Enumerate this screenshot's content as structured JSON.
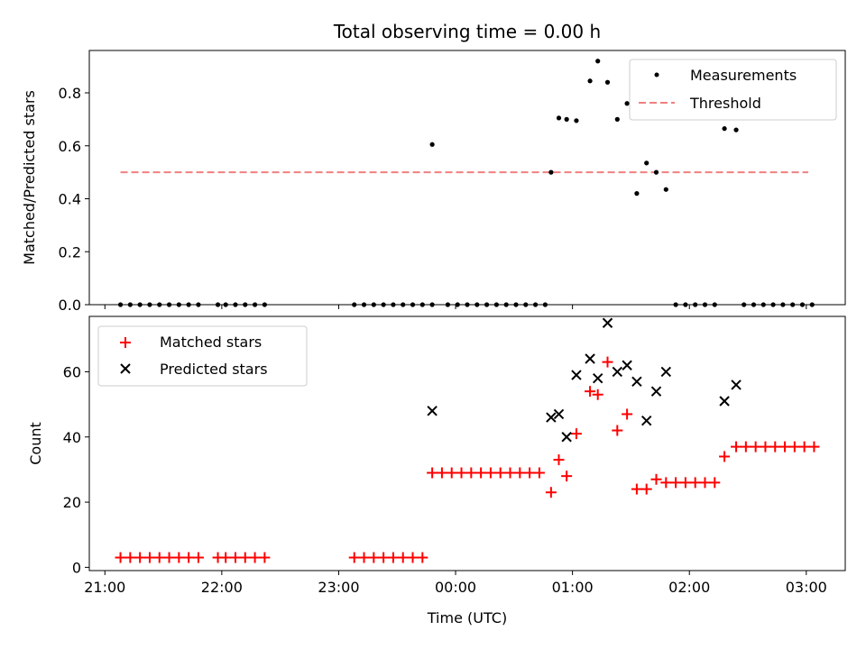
{
  "chart_data": [
    {
      "type": "scatter",
      "title": "Total observing time = 0.00 h",
      "xlabel": "",
      "ylabel": "Matched/Predicted stars",
      "xlim": [
        "20:52",
        "03:20"
      ],
      "ylim": [
        0,
        0.96
      ],
      "yticks": [
        "0.0",
        "0.2",
        "0.4",
        "0.6",
        "0.8"
      ],
      "xticks": [
        "21:00",
        "22:00",
        "23:00",
        "00:00",
        "01:00",
        "02:00",
        "03:00"
      ],
      "legend_position": "upper right",
      "legend": {
        "measurements_label": "Measurements",
        "threshold_label": "Threshold"
      },
      "threshold": {
        "value": 0.5,
        "x_start": "21:08",
        "x_end": "03:01",
        "color": "#f08080",
        "style": "dashed"
      },
      "series": [
        {
          "label": "Measurements",
          "color": "#000000",
          "marker": "dot",
          "points": [
            [
              "21:08",
              0
            ],
            [
              "21:13",
              0
            ],
            [
              "21:18",
              0
            ],
            [
              "21:23",
              0
            ],
            [
              "21:28",
              0
            ],
            [
              "21:33",
              0
            ],
            [
              "21:38",
              0
            ],
            [
              "21:43",
              0
            ],
            [
              "21:48",
              0
            ],
            [
              "21:58",
              0
            ],
            [
              "22:02",
              0
            ],
            [
              "22:07",
              0
            ],
            [
              "22:12",
              0
            ],
            [
              "22:17",
              0
            ],
            [
              "22:22",
              0
            ],
            [
              "23:08",
              0
            ],
            [
              "23:13",
              0
            ],
            [
              "23:18",
              0
            ],
            [
              "23:23",
              0
            ],
            [
              "23:28",
              0
            ],
            [
              "23:33",
              0
            ],
            [
              "23:38",
              0
            ],
            [
              "23:43",
              0
            ],
            [
              "23:48",
              0
            ],
            [
              "23:48",
              0.605
            ],
            [
              "23:56",
              0
            ],
            [
              "24:01",
              0
            ],
            [
              "24:06",
              0
            ],
            [
              "24:11",
              0
            ],
            [
              "24:16",
              0
            ],
            [
              "24:21",
              0
            ],
            [
              "24:26",
              0
            ],
            [
              "24:31",
              0
            ],
            [
              "24:36",
              0
            ],
            [
              "24:41",
              0
            ],
            [
              "24:46",
              0
            ],
            [
              "24:49",
              0.5
            ],
            [
              "24:53",
              0.705
            ],
            [
              "24:57",
              0.7
            ],
            [
              "25:02",
              0.695
            ],
            [
              "25:09",
              0.845
            ],
            [
              "25:13",
              0.92
            ],
            [
              "25:18",
              0.84
            ],
            [
              "25:23",
              0.7
            ],
            [
              "25:28",
              0.76
            ],
            [
              "25:33",
              0.42
            ],
            [
              "25:38",
              0.535
            ],
            [
              "25:43",
              0.5
            ],
            [
              "25:48",
              0.435
            ],
            [
              "25:53",
              0
            ],
            [
              "25:58",
              0
            ],
            [
              "26:03",
              0
            ],
            [
              "26:08",
              0
            ],
            [
              "26:13",
              0
            ],
            [
              "26:18",
              0.665
            ],
            [
              "26:24",
              0.66
            ],
            [
              "26:28",
              0
            ],
            [
              "26:33",
              0
            ],
            [
              "26:38",
              0
            ],
            [
              "26:43",
              0
            ],
            [
              "26:48",
              0
            ],
            [
              "26:53",
              0
            ],
            [
              "26:58",
              0
            ],
            [
              "27:03",
              0
            ]
          ]
        }
      ]
    },
    {
      "type": "scatter",
      "title": "",
      "xlabel": "Time (UTC)",
      "ylabel": "Count",
      "xlim": [
        "20:52",
        "03:20"
      ],
      "ylim": [
        -1,
        77
      ],
      "yticks": [
        "0",
        "20",
        "40",
        "60"
      ],
      "xticks": [
        "21:00",
        "22:00",
        "23:00",
        "00:00",
        "01:00",
        "02:00",
        "03:00"
      ],
      "legend_position": "upper left",
      "legend": {
        "matched_label": "Matched stars",
        "predicted_label": "Predicted stars"
      },
      "series": [
        {
          "label": "Matched stars",
          "color": "#ff0000",
          "marker": "plus",
          "points": [
            [
              "21:08",
              3
            ],
            [
              "21:13",
              3
            ],
            [
              "21:18",
              3
            ],
            [
              "21:23",
              3
            ],
            [
              "21:28",
              3
            ],
            [
              "21:33",
              3
            ],
            [
              "21:38",
              3
            ],
            [
              "21:43",
              3
            ],
            [
              "21:48",
              3
            ],
            [
              "21:58",
              3
            ],
            [
              "22:02",
              3
            ],
            [
              "22:07",
              3
            ],
            [
              "22:12",
              3
            ],
            [
              "22:17",
              3
            ],
            [
              "22:22",
              3
            ],
            [
              "23:08",
              3
            ],
            [
              "23:13",
              3
            ],
            [
              "23:18",
              3
            ],
            [
              "23:23",
              3
            ],
            [
              "23:28",
              3
            ],
            [
              "23:33",
              3
            ],
            [
              "23:38",
              3
            ],
            [
              "23:43",
              3
            ],
            [
              "23:48",
              29
            ],
            [
              "23:53",
              29
            ],
            [
              "23:58",
              29
            ],
            [
              "24:03",
              29
            ],
            [
              "24:08",
              29
            ],
            [
              "24:13",
              29
            ],
            [
              "24:18",
              29
            ],
            [
              "24:23",
              29
            ],
            [
              "24:28",
              29
            ],
            [
              "24:33",
              29
            ],
            [
              "24:38",
              29
            ],
            [
              "24:43",
              29
            ],
            [
              "24:49",
              23
            ],
            [
              "24:53",
              33
            ],
            [
              "24:57",
              28
            ],
            [
              "25:02",
              41
            ],
            [
              "25:09",
              54
            ],
            [
              "25:13",
              53
            ],
            [
              "25:18",
              63
            ],
            [
              "25:23",
              42
            ],
            [
              "25:28",
              47
            ],
            [
              "25:33",
              24
            ],
            [
              "25:38",
              24
            ],
            [
              "25:43",
              27
            ],
            [
              "25:48",
              26
            ],
            [
              "25:53",
              26
            ],
            [
              "25:58",
              26
            ],
            [
              "26:03",
              26
            ],
            [
              "26:08",
              26
            ],
            [
              "26:13",
              26
            ],
            [
              "26:18",
              34
            ],
            [
              "26:24",
              37
            ],
            [
              "26:29",
              37
            ],
            [
              "26:34",
              37
            ],
            [
              "26:39",
              37
            ],
            [
              "26:44",
              37
            ],
            [
              "26:49",
              37
            ],
            [
              "26:54",
              37
            ],
            [
              "26:59",
              37
            ],
            [
              "27:04",
              37
            ]
          ]
        },
        {
          "label": "Predicted stars",
          "color": "#000000",
          "marker": "x",
          "points": [
            [
              "23:48",
              48
            ],
            [
              "24:49",
              46
            ],
            [
              "24:53",
              47
            ],
            [
              "24:57",
              40
            ],
            [
              "25:02",
              59
            ],
            [
              "25:09",
              64
            ],
            [
              "25:13",
              58
            ],
            [
              "25:18",
              75
            ],
            [
              "25:23",
              60
            ],
            [
              "25:28",
              62
            ],
            [
              "25:33",
              57
            ],
            [
              "25:38",
              45
            ],
            [
              "25:43",
              54
            ],
            [
              "25:48",
              60
            ],
            [
              "26:18",
              51
            ],
            [
              "26:24",
              56
            ]
          ]
        }
      ]
    }
  ]
}
